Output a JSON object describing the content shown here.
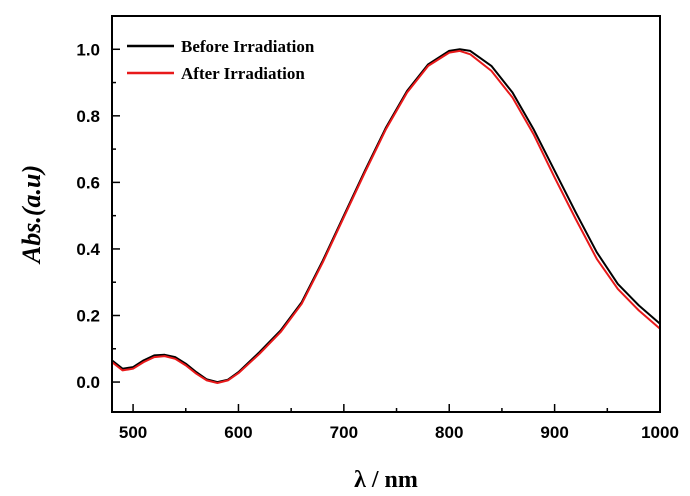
{
  "chart_data": {
    "type": "line",
    "title": "",
    "xlabel": "λ / nm",
    "ylabel": "Abs.(a.u)",
    "xlim": [
      480,
      1000
    ],
    "ylim": [
      -0.09,
      1.1
    ],
    "x_ticks": [
      500,
      600,
      700,
      800,
      900,
      1000
    ],
    "y_ticks": [
      0.0,
      0.2,
      0.4,
      0.6,
      0.8,
      1.0
    ],
    "x_tick_labels": [
      "500",
      "600",
      "700",
      "800",
      "900",
      "1000"
    ],
    "y_tick_labels": [
      "0.0",
      "0.2",
      "0.4",
      "0.6",
      "0.8",
      "1.0"
    ],
    "grid": false,
    "legend_position": "top-left",
    "series": [
      {
        "name": "Before Irradiation",
        "color": "#000000",
        "x": [
          480,
          490,
          500,
          510,
          520,
          530,
          540,
          550,
          560,
          570,
          580,
          590,
          600,
          620,
          640,
          660,
          680,
          700,
          720,
          740,
          760,
          780,
          800,
          810,
          820,
          840,
          860,
          880,
          900,
          920,
          940,
          960,
          980,
          1000
        ],
        "y": [
          0.065,
          0.04,
          0.045,
          0.065,
          0.08,
          0.082,
          0.075,
          0.055,
          0.03,
          0.008,
          0.0,
          0.007,
          0.03,
          0.09,
          0.155,
          0.24,
          0.365,
          0.5,
          0.635,
          0.765,
          0.875,
          0.955,
          0.995,
          1.0,
          0.995,
          0.95,
          0.87,
          0.76,
          0.635,
          0.51,
          0.39,
          0.295,
          0.23,
          0.175
        ]
      },
      {
        "name": "After Irradiation",
        "color": "#e8191a",
        "x": [
          480,
          490,
          500,
          510,
          520,
          530,
          540,
          550,
          560,
          570,
          580,
          590,
          600,
          620,
          640,
          660,
          680,
          700,
          720,
          740,
          760,
          780,
          800,
          810,
          820,
          840,
          860,
          880,
          900,
          920,
          940,
          960,
          980,
          1000
        ],
        "y": [
          0.06,
          0.035,
          0.04,
          0.06,
          0.075,
          0.078,
          0.07,
          0.05,
          0.025,
          0.005,
          -0.003,
          0.005,
          0.027,
          0.085,
          0.15,
          0.235,
          0.36,
          0.495,
          0.63,
          0.76,
          0.87,
          0.95,
          0.99,
          0.995,
          0.985,
          0.935,
          0.855,
          0.745,
          0.615,
          0.49,
          0.37,
          0.28,
          0.215,
          0.16
        ]
      }
    ]
  }
}
